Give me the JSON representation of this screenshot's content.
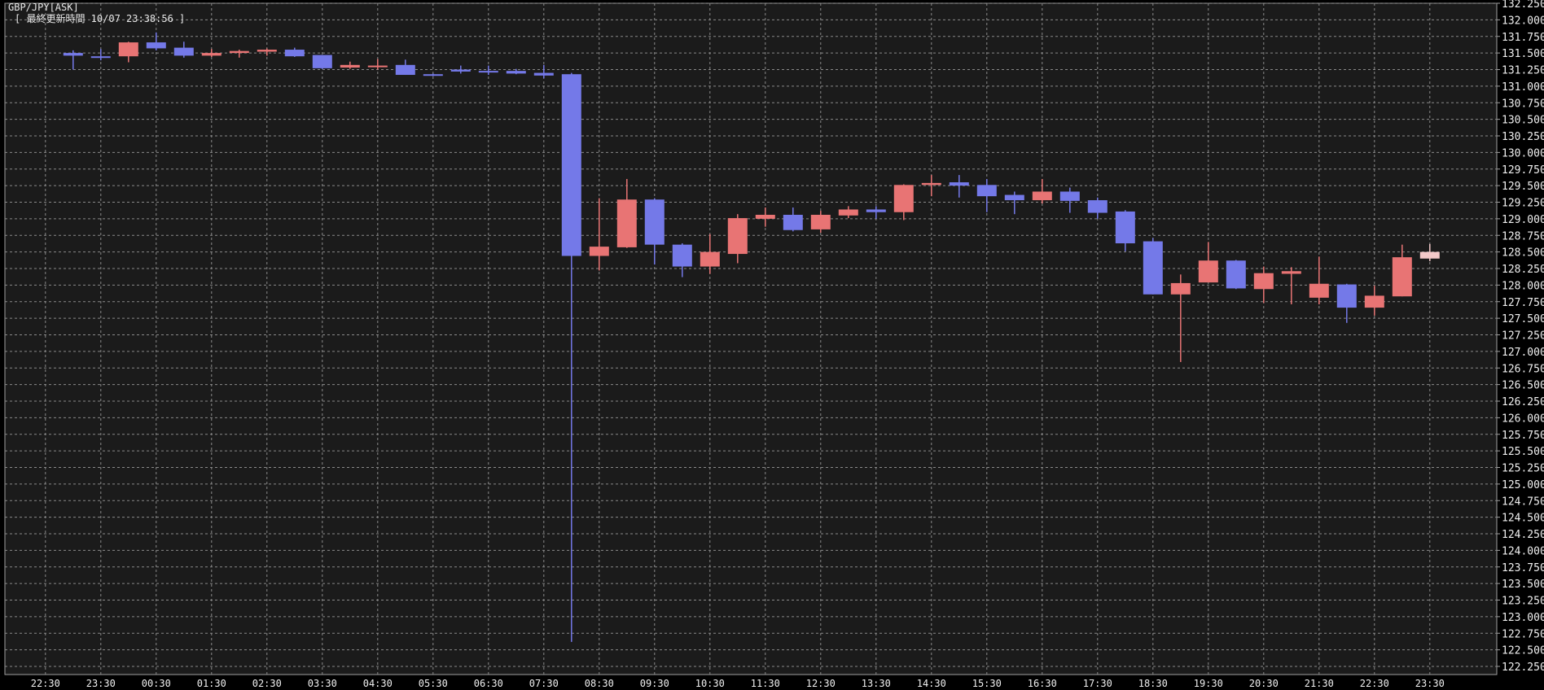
{
  "chart_data": {
    "type": "candlestick",
    "title": "GBP/JPY[ASK]",
    "subtitle": "[ 最終更新時間 10/07 23:38:56 ]",
    "ylim": [
      122.25,
      132.25
    ],
    "y_tick_step": 0.25,
    "y_tick_labels": [
      "132.250",
      "132.000",
      "131.750",
      "131.500",
      "131.250",
      "131.000",
      "130.750",
      "130.500",
      "130.250",
      "130.000",
      "129.750",
      "129.500",
      "129.250",
      "129.000",
      "128.750",
      "128.500",
      "128.250",
      "128.000",
      "127.750",
      "127.500",
      "127.250",
      "127.000",
      "126.750",
      "126.500",
      "126.250",
      "126.000",
      "125.750",
      "125.500",
      "125.250",
      "125.000",
      "124.750",
      "124.500",
      "124.250",
      "124.000",
      "123.750",
      "123.500",
      "123.250",
      "123.000",
      "122.750",
      "122.500",
      "122.250"
    ],
    "x_tick_labels": [
      "22:30",
      "23:30",
      "00:30",
      "01:30",
      "02:30",
      "03:30",
      "04:30",
      "05:30",
      "06:30",
      "07:30",
      "08:30",
      "09:30",
      "10:30",
      "11:30",
      "12:30",
      "13:30",
      "14:30",
      "15:30",
      "16:30",
      "17:30",
      "18:30",
      "19:30",
      "20:30",
      "21:30",
      "22:30",
      "23:30"
    ],
    "grid": true,
    "colors": {
      "background": "#1b1b1b",
      "up": "#e87474",
      "down": "#7479e8",
      "current": "#f2c9c9",
      "grid": "#8a8a8a",
      "axis": "#a0a0a0",
      "text": "#f0f0f0"
    },
    "candle_fields": [
      "time",
      "open",
      "high",
      "low",
      "close"
    ],
    "candles": [
      [
        "23:00",
        131.5,
        131.54,
        131.25,
        131.46
      ],
      [
        "23:30",
        131.45,
        131.56,
        131.39,
        131.44
      ],
      [
        "00:00",
        131.45,
        131.67,
        131.36,
        131.66
      ],
      [
        "00:30",
        131.66,
        131.81,
        131.54,
        131.57
      ],
      [
        "01:00",
        131.58,
        131.67,
        131.43,
        131.46
      ],
      [
        "01:30",
        131.46,
        131.56,
        131.44,
        131.5
      ],
      [
        "02:00",
        131.5,
        131.55,
        131.43,
        131.53
      ],
      [
        "02:30",
        131.52,
        131.57,
        131.46,
        131.55
      ],
      [
        "03:00",
        131.55,
        131.58,
        131.44,
        131.45
      ],
      [
        "03:30",
        131.47,
        131.47,
        131.26,
        131.27
      ],
      [
        "04:00",
        131.28,
        131.37,
        131.26,
        131.32
      ],
      [
        "04:30",
        131.3,
        131.41,
        131.25,
        131.31
      ],
      [
        "05:00",
        131.32,
        131.4,
        131.17,
        131.17
      ],
      [
        "05:30",
        131.18,
        131.19,
        131.15,
        131.16
      ],
      [
        "06:00",
        131.25,
        131.31,
        131.19,
        131.22
      ],
      [
        "06:30",
        131.23,
        131.31,
        131.17,
        131.22
      ],
      [
        "07:00",
        131.23,
        131.26,
        131.18,
        131.19
      ],
      [
        "07:30",
        131.2,
        131.32,
        131.12,
        131.16
      ],
      [
        "08:00",
        131.18,
        131.2,
        122.62,
        128.44
      ],
      [
        "08:30",
        128.44,
        129.31,
        128.22,
        128.58
      ],
      [
        "09:00",
        128.57,
        129.6,
        128.56,
        129.29
      ],
      [
        "09:30",
        129.29,
        129.31,
        128.31,
        128.61
      ],
      [
        "10:00",
        128.61,
        128.63,
        128.12,
        128.28
      ],
      [
        "10:30",
        128.28,
        128.77,
        128.17,
        128.5
      ],
      [
        "11:00",
        128.47,
        129.07,
        128.33,
        129.01
      ],
      [
        "11:30",
        129.0,
        129.17,
        128.88,
        129.06
      ],
      [
        "12:00",
        129.06,
        129.17,
        128.81,
        128.83
      ],
      [
        "12:30",
        128.84,
        129.12,
        128.79,
        129.06
      ],
      [
        "13:00",
        129.05,
        129.19,
        129.01,
        129.14
      ],
      [
        "13:30",
        129.14,
        129.19,
        129.0,
        129.1
      ],
      [
        "14:00",
        129.1,
        129.52,
        128.98,
        129.51
      ],
      [
        "14:30",
        129.51,
        129.66,
        129.34,
        129.54
      ],
      [
        "15:00",
        129.55,
        129.66,
        129.32,
        129.5
      ],
      [
        "15:30",
        129.51,
        129.6,
        129.1,
        129.34
      ],
      [
        "16:00",
        129.36,
        129.41,
        129.07,
        129.28
      ],
      [
        "16:30",
        129.28,
        129.6,
        129.23,
        129.41
      ],
      [
        "17:00",
        129.41,
        129.47,
        129.09,
        129.27
      ],
      [
        "17:30",
        129.28,
        129.32,
        129.0,
        129.09
      ],
      [
        "18:00",
        129.11,
        129.13,
        128.51,
        128.63
      ],
      [
        "18:30",
        128.66,
        128.71,
        127.86,
        127.86
      ],
      [
        "19:00",
        127.86,
        128.16,
        126.84,
        128.03
      ],
      [
        "19:30",
        128.04,
        128.65,
        128.04,
        128.37
      ],
      [
        "20:00",
        128.37,
        128.38,
        127.94,
        127.95
      ],
      [
        "20:30",
        127.94,
        128.28,
        127.73,
        128.18
      ],
      [
        "21:00",
        128.17,
        128.27,
        127.71,
        128.21
      ],
      [
        "21:30",
        127.81,
        128.43,
        127.71,
        128.02
      ],
      [
        "22:00",
        128.01,
        128.02,
        127.43,
        127.66
      ],
      [
        "22:30",
        127.66,
        127.99,
        127.54,
        127.84
      ],
      [
        "23:00",
        127.83,
        128.61,
        127.83,
        128.42
      ],
      [
        "23:30",
        128.4,
        128.62,
        128.36,
        128.5
      ]
    ]
  }
}
